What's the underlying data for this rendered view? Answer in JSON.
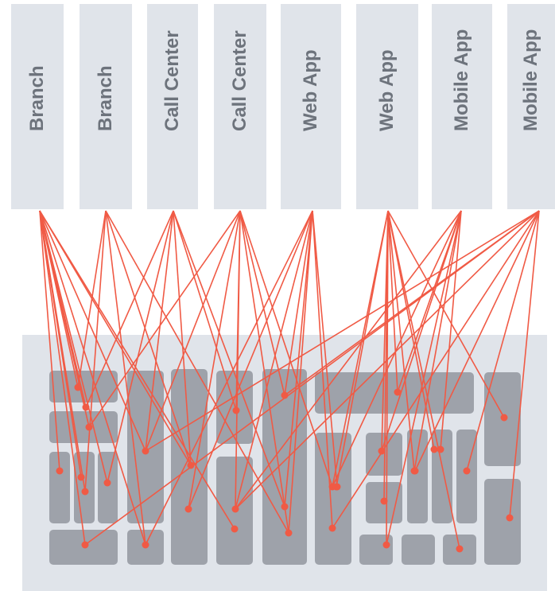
{
  "channels": [
    {
      "label": "Branch"
    },
    {
      "label": "Branch"
    },
    {
      "label": "Call Center"
    },
    {
      "label": "Call Center"
    },
    {
      "label": "Web App"
    },
    {
      "label": "Web App"
    },
    {
      "label": "Mobile App"
    },
    {
      "label": "Mobile App"
    }
  ],
  "colors": {
    "channel_card": "#e0e4ea",
    "channel_text": "#6d737c",
    "panel": "#e0e4ea",
    "system_block": "#9ea2aa",
    "connection": "#f05a45"
  },
  "connection_count": 52
}
